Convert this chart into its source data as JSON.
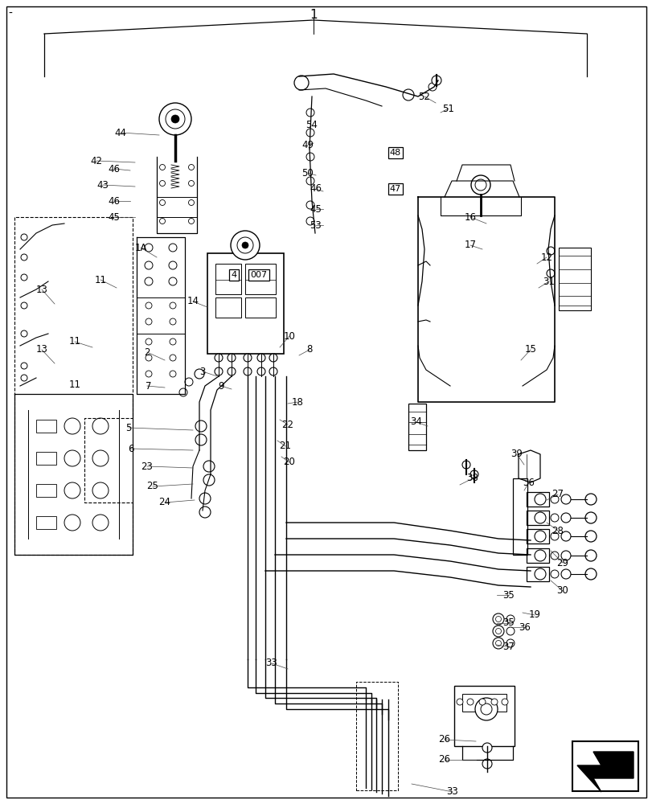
{
  "title": "1",
  "background_color": "#ffffff",
  "line_color": "#000000",
  "label_color": "#000000",
  "figsize": [
    8.12,
    10.0
  ],
  "dpi": 100
}
